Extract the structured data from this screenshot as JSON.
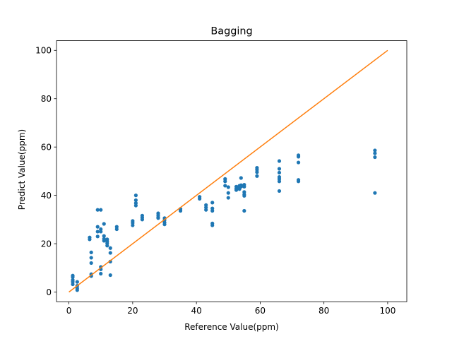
{
  "chart_data": {
    "type": "scatter",
    "title": "Bagging",
    "xlabel": "Reference Value(ppm)",
    "ylabel": "Predict Value(ppm)",
    "xlim": [
      -3.9,
      106
    ],
    "ylim": [
      -4.0,
      104
    ],
    "xticks": [
      0,
      20,
      40,
      60,
      80,
      100
    ],
    "yticks": [
      0,
      20,
      40,
      60,
      80,
      100
    ],
    "grid": false,
    "colors": {
      "points": "#1f77b4",
      "line": "#ff7f0e"
    },
    "series": [
      {
        "type": "scatter",
        "points": [
          [
            1.2,
            6.8
          ],
          [
            1.2,
            6.2
          ],
          [
            1.2,
            5.0
          ],
          [
            1.2,
            4.2
          ],
          [
            1.2,
            3.2
          ],
          [
            2.6,
            4.2
          ],
          [
            2.6,
            2.6
          ],
          [
            2.6,
            1.6
          ],
          [
            2.6,
            0.8
          ],
          [
            6.5,
            22.6
          ],
          [
            6.5,
            21.8
          ],
          [
            7.0,
            16.4
          ],
          [
            7.0,
            14.2
          ],
          [
            7.0,
            12.0
          ],
          [
            7.0,
            7.4
          ],
          [
            7.0,
            6.6
          ],
          [
            9.0,
            34.0
          ],
          [
            9.0,
            27.0
          ],
          [
            9.0,
            25.0
          ],
          [
            9.0,
            23.0
          ],
          [
            10.0,
            34.0
          ],
          [
            10.0,
            26.0
          ],
          [
            10.0,
            25.0
          ],
          [
            10.0,
            10.4
          ],
          [
            10.0,
            9.4
          ],
          [
            10.0,
            7.6
          ],
          [
            11.0,
            28.2
          ],
          [
            11.0,
            23.2
          ],
          [
            11.0,
            22.0
          ],
          [
            11.0,
            21.2
          ],
          [
            12.0,
            21.8
          ],
          [
            12.0,
            21.0
          ],
          [
            12.0,
            20.2
          ],
          [
            12.0,
            19.2
          ],
          [
            13.0,
            18.2
          ],
          [
            13.0,
            16.2
          ],
          [
            13.0,
            12.6
          ],
          [
            13.0,
            7.0
          ],
          [
            15.0,
            27.0
          ],
          [
            15.0,
            26.0
          ],
          [
            20.0,
            29.4
          ],
          [
            20.0,
            28.6
          ],
          [
            20.0,
            27.6
          ],
          [
            21.0,
            40.0
          ],
          [
            21.0,
            38.0
          ],
          [
            21.0,
            36.8
          ],
          [
            21.0,
            35.8
          ],
          [
            23.0,
            31.6
          ],
          [
            23.0,
            30.8
          ],
          [
            23.0,
            30.0
          ],
          [
            28.0,
            32.6
          ],
          [
            28.0,
            31.8
          ],
          [
            28.0,
            31.0
          ],
          [
            28.0,
            30.6
          ],
          [
            30.0,
            30.6
          ],
          [
            30.0,
            29.8
          ],
          [
            30.0,
            28.8
          ],
          [
            30.0,
            28.0
          ],
          [
            35.0,
            34.4
          ],
          [
            35.0,
            33.6
          ],
          [
            41.0,
            39.4
          ],
          [
            41.0,
            38.6
          ],
          [
            43.0,
            36.0
          ],
          [
            43.0,
            35.0
          ],
          [
            43.0,
            34.0
          ],
          [
            45.0,
            37.0
          ],
          [
            45.0,
            34.6
          ],
          [
            45.0,
            33.6
          ],
          [
            45.0,
            28.4
          ],
          [
            45.0,
            27.6
          ],
          [
            49.0,
            46.8
          ],
          [
            49.0,
            45.8
          ],
          [
            49.0,
            44.0
          ],
          [
            50.0,
            43.4
          ],
          [
            50.0,
            41.0
          ],
          [
            50.0,
            39.0
          ],
          [
            52.5,
            43.6
          ],
          [
            52.5,
            42.8
          ],
          [
            52.5,
            42.2
          ],
          [
            53.5,
            44.0
          ],
          [
            53.5,
            43.2
          ],
          [
            53.5,
            42.6
          ],
          [
            54.0,
            47.2
          ],
          [
            54.0,
            44.2
          ],
          [
            54.0,
            43.6
          ],
          [
            55.0,
            44.4
          ],
          [
            55.0,
            43.6
          ],
          [
            55.0,
            41.4
          ],
          [
            55.0,
            40.4
          ],
          [
            55.0,
            39.8
          ],
          [
            55.0,
            33.6
          ],
          [
            59.0,
            51.4
          ],
          [
            59.0,
            50.6
          ],
          [
            59.0,
            49.6
          ],
          [
            59.0,
            48.0
          ],
          [
            66.0,
            54.2
          ],
          [
            66.0,
            51.0
          ],
          [
            66.0,
            49.4
          ],
          [
            66.0,
            47.6
          ],
          [
            66.0,
            46.8
          ],
          [
            66.0,
            45.8
          ],
          [
            66.0,
            41.8
          ],
          [
            72.0,
            56.6
          ],
          [
            72.0,
            56.0
          ],
          [
            72.0,
            53.6
          ],
          [
            72.0,
            46.4
          ],
          [
            72.0,
            45.8
          ],
          [
            96.0,
            58.6
          ],
          [
            96.0,
            57.4
          ],
          [
            96.0,
            55.8
          ],
          [
            96.0,
            41.0
          ]
        ]
      },
      {
        "type": "line",
        "x": [
          0,
          100
        ],
        "y": [
          0,
          100
        ]
      }
    ]
  }
}
